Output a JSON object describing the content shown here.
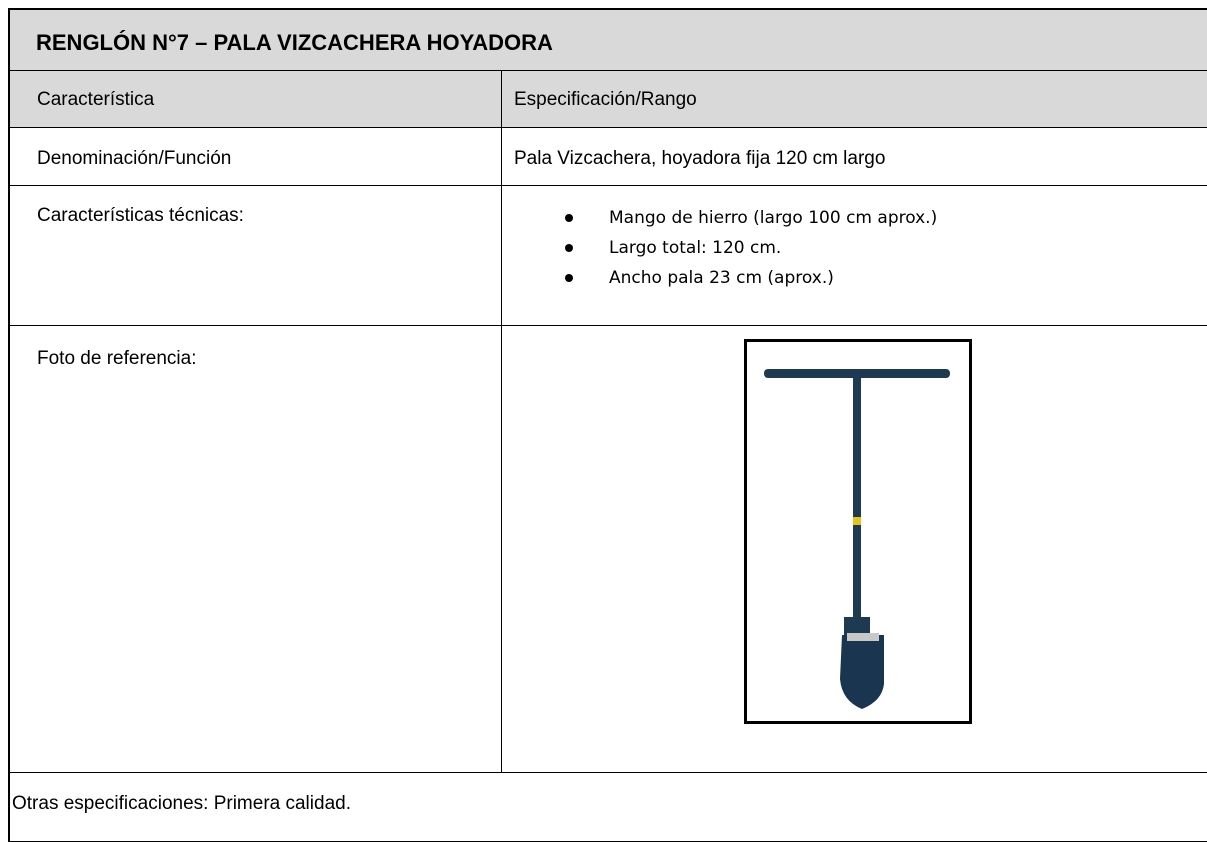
{
  "header": {
    "title": "RENGLÓN N°7 – PALA VIZCACHERA HOYADORA"
  },
  "table": {
    "columns": [
      "Característica",
      "Especificación/Rango"
    ],
    "rows": [
      {
        "label": "Denominación/Función",
        "value": "Pala Vizcachera, hoyadora fija 120 cm largo"
      },
      {
        "label": "Características técnicas:",
        "bullets": [
          "Mango de hierro (largo 100 cm aprox.)",
          "Largo total: 120 cm.",
          "Ancho pala 23 cm (aprox.)"
        ]
      },
      {
        "label": "Foto de referencia:"
      }
    ]
  },
  "footer": {
    "text": "Otras especificaciones: Primera calidad."
  }
}
